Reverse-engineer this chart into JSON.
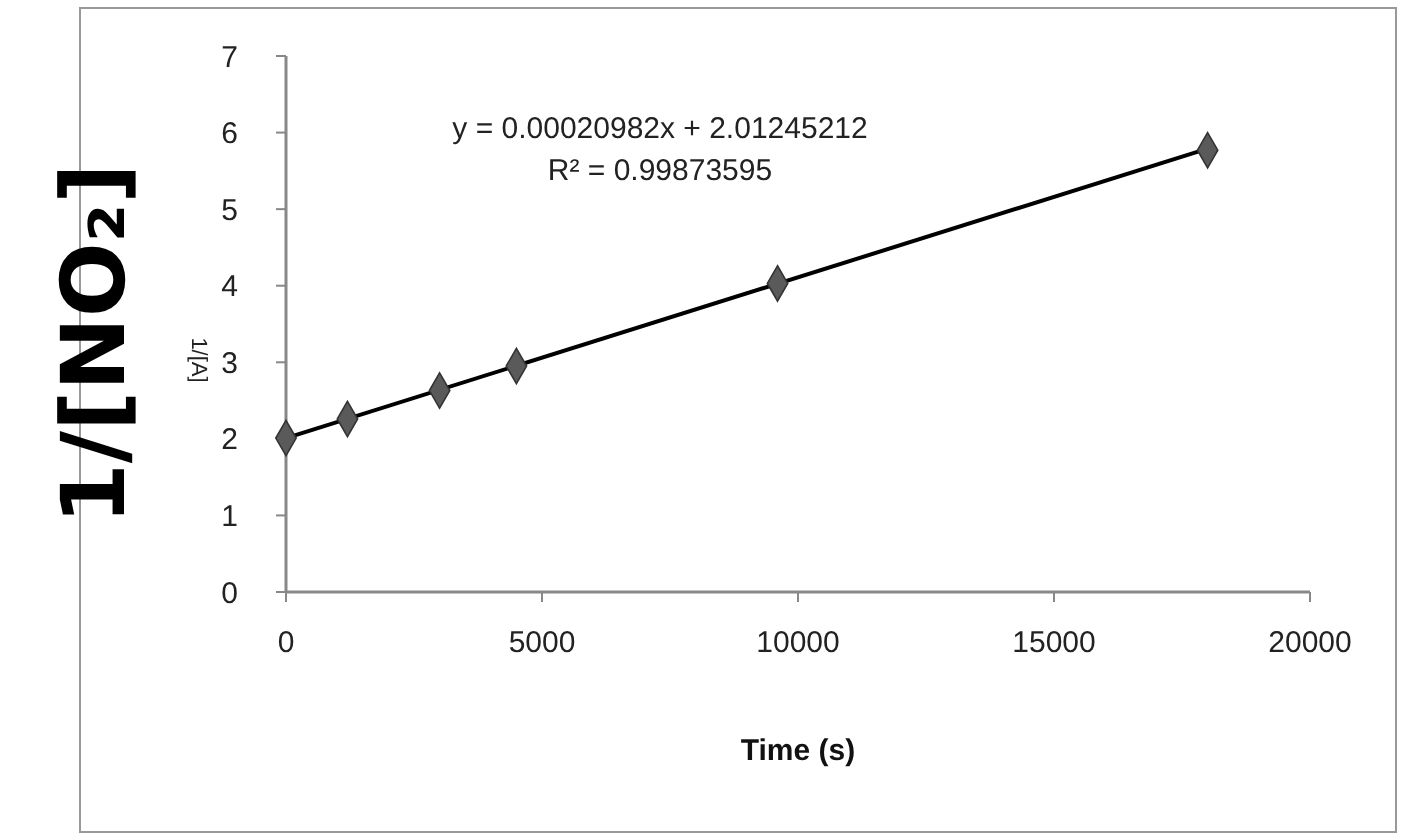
{
  "chart_data": {
    "type": "scatter",
    "xlabel": "Time (s)",
    "ylabel": "1/[NO₂]",
    "x": [
      0,
      1200,
      3000,
      4500,
      9600,
      18000
    ],
    "xlim": [
      0,
      20000
    ],
    "xticks": [
      0,
      5000,
      10000,
      15000,
      20000
    ],
    "ylim": [
      0,
      7
    ],
    "yticks": [
      0,
      1,
      2,
      3,
      4,
      5,
      6,
      7
    ],
    "grid": false,
    "series": [
      {
        "marker": "diamond",
        "color": "#5a5a5a",
        "values": [
          2.01,
          2.26,
          2.63,
          2.95,
          4.03,
          5.77
        ]
      },
      {
        "type": "line",
        "color": "#000000",
        "x": [
          0,
          18000
        ],
        "values": [
          2.01,
          5.79
        ]
      }
    ],
    "annotations": [
      "y = 0.00020982x + 2.01245212",
      "R² = 0.99873595",
      "1/[A]"
    ]
  }
}
